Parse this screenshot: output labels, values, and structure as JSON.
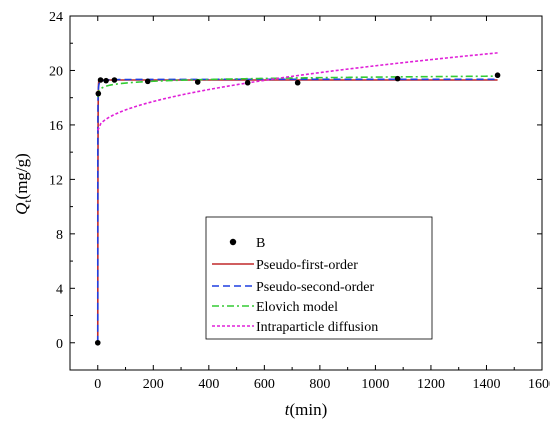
{
  "chart_data": {
    "type": "scatter",
    "title": "",
    "xlabel": {
      "italic": "t",
      "rest": "(min)"
    },
    "ylabel": {
      "italic": "Q",
      "sub": "t",
      "rest": "(mg/g)"
    },
    "xlim": [
      -100,
      1600
    ],
    "ylim": [
      -2,
      24
    ],
    "xticks": [
      0,
      200,
      400,
      600,
      800,
      1000,
      1200,
      1400,
      1600
    ],
    "yticks": [
      0,
      4,
      8,
      12,
      16,
      20,
      24
    ],
    "grid": false,
    "legend_position": "lower-right",
    "points": {
      "name": "B",
      "color": "#000000",
      "x": [
        0,
        2,
        10,
        30,
        60,
        180,
        360,
        540,
        720,
        1080,
        1440
      ],
      "y": [
        0,
        18.3,
        19.3,
        19.25,
        19.3,
        19.2,
        19.15,
        19.1,
        19.1,
        19.4,
        19.65
      ]
    },
    "series": [
      {
        "name": "Pseudo-first-order",
        "color": "#c0282a",
        "style": "solid",
        "model": "pfo",
        "params": {
          "qe": 19.3,
          "k": 1.5
        }
      },
      {
        "name": "Pseudo-second-order",
        "color": "#1f3fe0",
        "style": "dashed",
        "model": "pso",
        "params": {
          "qe": 19.35,
          "k": 0.6
        }
      },
      {
        "name": "Elovich model",
        "color": "#33cc33",
        "style": "dashdot",
        "model": "elovich",
        "params": {
          "a": 18.2,
          "b": 0.19
        }
      },
      {
        "name": "Intraparticle diffusion",
        "color": "#e020d8",
        "style": "dotted",
        "model": "ipd",
        "params": {
          "k": 0.15,
          "c": 15.6
        }
      }
    ]
  }
}
